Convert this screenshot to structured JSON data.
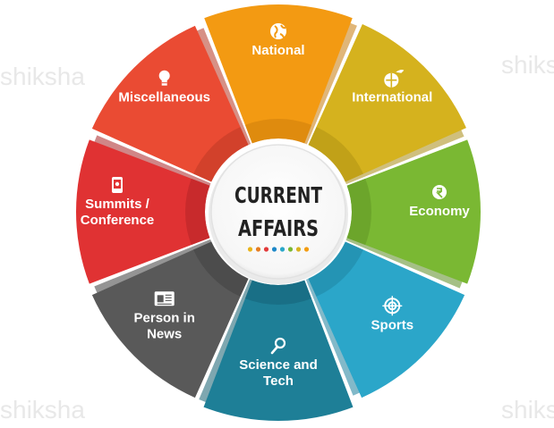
{
  "watermark_text": "shiksha",
  "center": {
    "line1": "CURRENT",
    "line2": "AFFAIRS",
    "dot_colors": [
      "#e8b41c",
      "#e67e22",
      "#e23a3a",
      "#1e88c8",
      "#2aa7c9",
      "#7ab833",
      "#d9b21f",
      "#f39c12"
    ]
  },
  "segments": [
    {
      "id": "national",
      "lines": [
        "National"
      ],
      "color": "#f39a12",
      "shade": "#c77a0a",
      "icon": "globe-icon"
    },
    {
      "id": "international",
      "lines": [
        "International"
      ],
      "color": "#d5b21e",
      "shade": "#a88b12",
      "icon": "globe-plane-icon"
    },
    {
      "id": "economy",
      "lines": [
        "Economy"
      ],
      "color": "#7ab833",
      "shade": "#5b8d22",
      "icon": "rupee-icon"
    },
    {
      "id": "sports",
      "lines": [
        "Sports"
      ],
      "color": "#2ba6c9",
      "shade": "#1c7f9c",
      "icon": "target-icon"
    },
    {
      "id": "science-tech",
      "lines": [
        "Science and",
        "Tech"
      ],
      "color": "#1e7f97",
      "shade": "#145e70",
      "icon": "magnifier-icon"
    },
    {
      "id": "person-news",
      "lines": [
        "Person in",
        "News"
      ],
      "color": "#595959",
      "shade": "#3c3c3c",
      "icon": "newspaper-icon"
    },
    {
      "id": "summits",
      "lines": [
        "Summits /",
        "Conference"
      ],
      "color": "#e03233",
      "shade": "#aa2224",
      "icon": "phone-icon"
    },
    {
      "id": "misc",
      "lines": [
        "Miscellaneous"
      ],
      "color": "#ea4b33",
      "shade": "#b63521",
      "icon": "bulb-icon"
    }
  ]
}
